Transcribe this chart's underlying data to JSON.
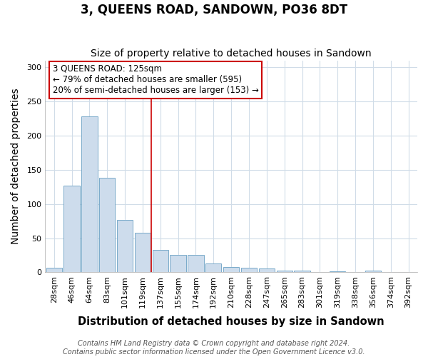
{
  "title": "3, QUEENS ROAD, SANDOWN, PO36 8DT",
  "subtitle": "Size of property relative to detached houses in Sandown",
  "xlabel": "Distribution of detached houses by size in Sandown",
  "ylabel": "Number of detached properties",
  "categories": [
    "28sqm",
    "46sqm",
    "64sqm",
    "83sqm",
    "101sqm",
    "119sqm",
    "137sqm",
    "155sqm",
    "174sqm",
    "192sqm",
    "210sqm",
    "228sqm",
    "247sqm",
    "265sqm",
    "283sqm",
    "301sqm",
    "319sqm",
    "338sqm",
    "356sqm",
    "374sqm",
    "392sqm"
  ],
  "values": [
    7,
    127,
    228,
    138,
    77,
    58,
    33,
    26,
    26,
    13,
    8,
    7,
    6,
    3,
    3,
    0,
    1,
    0,
    3,
    0,
    0
  ],
  "bar_color": "#cddcec",
  "bar_edge_color": "#7aaaca",
  "vline_x": 5.5,
  "vline_color": "#cc0000",
  "annotation_text": "3 QUEENS ROAD: 125sqm\n← 79% of detached houses are smaller (595)\n20% of semi-detached houses are larger (153) →",
  "annotation_box_edge_color": "#cc0000",
  "annotation_box_face_color": "#ffffff",
  "ylim": [
    0,
    310
  ],
  "yticks": [
    0,
    50,
    100,
    150,
    200,
    250,
    300
  ],
  "footer": "Contains HM Land Registry data © Crown copyright and database right 2024.\nContains public sector information licensed under the Open Government Licence v3.0.",
  "bg_color": "#ffffff",
  "plot_bg_color": "#ffffff",
  "grid_color": "#d0dce8",
  "title_fontsize": 12,
  "subtitle_fontsize": 10,
  "axis_label_fontsize": 10,
  "tick_fontsize": 8,
  "footer_fontsize": 7
}
